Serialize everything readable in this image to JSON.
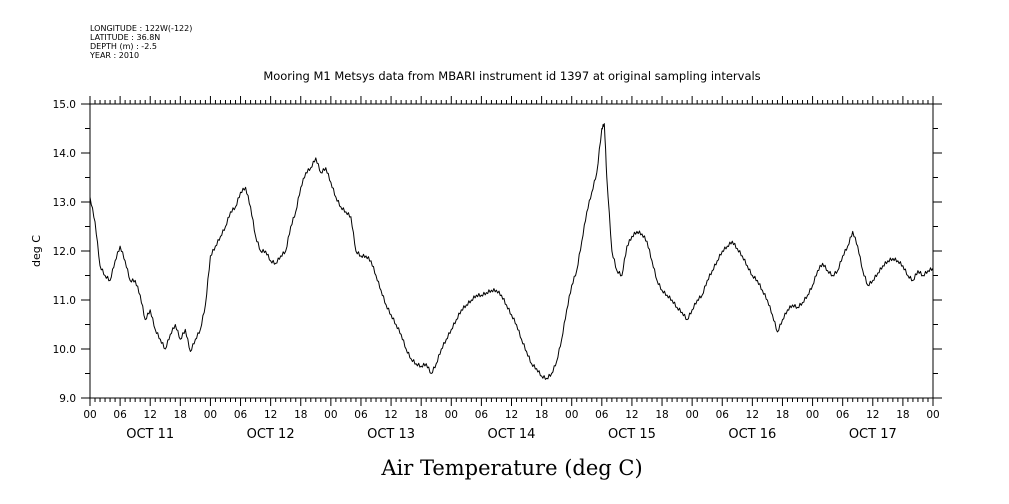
{
  "header": {
    "meta_lines": [
      "LONGITUDE : 122W(-122)",
      "LATITUDE : 36.8N",
      "DEPTH (m) : -2.5",
      "YEAR : 2010"
    ]
  },
  "chart_data": {
    "type": "line",
    "title": "Mooring M1 Metsys data from MBARI instrument id 1397 at original sampling intervals",
    "xlabel": "Air Temperature (deg C)",
    "ylabel": "deg C",
    "ylim": [
      9.0,
      15.0
    ],
    "yticks": [
      "9.0",
      "10.0",
      "11.0",
      "12.0",
      "13.0",
      "14.0",
      "15.0"
    ],
    "x_unit": "hours since 2010-10-11 00:00",
    "xlim": [
      0,
      168
    ],
    "hour_tick_labels": [
      "00",
      "06",
      "12",
      "18",
      "00",
      "06",
      "12",
      "18",
      "00",
      "06",
      "12",
      "18",
      "00",
      "06",
      "12",
      "18",
      "00",
      "06",
      "12",
      "18",
      "00",
      "06",
      "12",
      "18",
      "00",
      "06",
      "12",
      "18",
      "00"
    ],
    "day_labels": [
      "OCT 11",
      "OCT 12",
      "OCT 13",
      "OCT 14",
      "OCT 15",
      "OCT 16",
      "OCT 17"
    ],
    "grid": false,
    "series": [
      {
        "points": [
          [
            0,
            13.1
          ],
          [
            1,
            12.6
          ],
          [
            2,
            11.7
          ],
          [
            3,
            11.5
          ],
          [
            4,
            11.4
          ],
          [
            5,
            11.8
          ],
          [
            6,
            12.1
          ],
          [
            7,
            11.8
          ],
          [
            8,
            11.4
          ],
          [
            9,
            11.4
          ],
          [
            10,
            11.1
          ],
          [
            11,
            10.6
          ],
          [
            12,
            10.8
          ],
          [
            13,
            10.4
          ],
          [
            14,
            10.2
          ],
          [
            15,
            10.0
          ],
          [
            16,
            10.3
          ],
          [
            17,
            10.5
          ],
          [
            18,
            10.2
          ],
          [
            19,
            10.4
          ],
          [
            20,
            9.95
          ],
          [
            21,
            10.2
          ],
          [
            22,
            10.4
          ],
          [
            23,
            10.9
          ],
          [
            24,
            11.9
          ],
          [
            25,
            12.1
          ],
          [
            26,
            12.3
          ],
          [
            27,
            12.5
          ],
          [
            28,
            12.8
          ],
          [
            29,
            12.9
          ],
          [
            30,
            13.2
          ],
          [
            31,
            13.3
          ],
          [
            32,
            12.9
          ],
          [
            33,
            12.3
          ],
          [
            34,
            12.0
          ],
          [
            35,
            12.0
          ],
          [
            36,
            11.8
          ],
          [
            37,
            11.75
          ],
          [
            38,
            11.9
          ],
          [
            39,
            12.0
          ],
          [
            40,
            12.5
          ],
          [
            41,
            12.8
          ],
          [
            42,
            13.3
          ],
          [
            43,
            13.6
          ],
          [
            44,
            13.7
          ],
          [
            45,
            13.9
          ],
          [
            46,
            13.6
          ],
          [
            47,
            13.7
          ],
          [
            48,
            13.4
          ],
          [
            49,
            13.1
          ],
          [
            50,
            12.9
          ],
          [
            51,
            12.8
          ],
          [
            52,
            12.7
          ],
          [
            53,
            12.0
          ],
          [
            54,
            11.9
          ],
          [
            55,
            11.9
          ],
          [
            56,
            11.8
          ],
          [
            57,
            11.5
          ],
          [
            58,
            11.2
          ],
          [
            59,
            10.9
          ],
          [
            60,
            10.7
          ],
          [
            61,
            10.5
          ],
          [
            62,
            10.3
          ],
          [
            63,
            10.0
          ],
          [
            64,
            9.8
          ],
          [
            65,
            9.7
          ],
          [
            66,
            9.65
          ],
          [
            67,
            9.7
          ],
          [
            68,
            9.5
          ],
          [
            69,
            9.7
          ],
          [
            70,
            10.0
          ],
          [
            71,
            10.2
          ],
          [
            72,
            10.4
          ],
          [
            73,
            10.6
          ],
          [
            74,
            10.8
          ],
          [
            75,
            10.9
          ],
          [
            76,
            11.0
          ],
          [
            77,
            11.1
          ],
          [
            78,
            11.1
          ],
          [
            79,
            11.15
          ],
          [
            80,
            11.2
          ],
          [
            81,
            11.2
          ],
          [
            82,
            11.1
          ],
          [
            83,
            10.9
          ],
          [
            84,
            10.7
          ],
          [
            85,
            10.5
          ],
          [
            86,
            10.2
          ],
          [
            87,
            9.95
          ],
          [
            88,
            9.7
          ],
          [
            89,
            9.6
          ],
          [
            90,
            9.45
          ],
          [
            91,
            9.4
          ],
          [
            92,
            9.5
          ],
          [
            93,
            9.75
          ],
          [
            94,
            10.2
          ],
          [
            95,
            10.8
          ],
          [
            96,
            11.3
          ],
          [
            97,
            11.6
          ],
          [
            98,
            12.2
          ],
          [
            99,
            12.8
          ],
          [
            100,
            13.2
          ],
          [
            101,
            13.6
          ],
          [
            102,
            14.5
          ],
          [
            102.5,
            14.6
          ],
          [
            103,
            13.5
          ],
          [
            104,
            12.0
          ],
          [
            105,
            11.6
          ],
          [
            106,
            11.5
          ],
          [
            107,
            12.1
          ],
          [
            108,
            12.3
          ],
          [
            109,
            12.4
          ],
          [
            110,
            12.35
          ],
          [
            111,
            12.2
          ],
          [
            112,
            11.8
          ],
          [
            113,
            11.4
          ],
          [
            114,
            11.2
          ],
          [
            115,
            11.1
          ],
          [
            116,
            11.0
          ],
          [
            117,
            10.85
          ],
          [
            118,
            10.75
          ],
          [
            119,
            10.6
          ],
          [
            120,
            10.8
          ],
          [
            121,
            11.0
          ],
          [
            122,
            11.1
          ],
          [
            123,
            11.4
          ],
          [
            124,
            11.6
          ],
          [
            125,
            11.8
          ],
          [
            126,
            12.0
          ],
          [
            127,
            12.1
          ],
          [
            128,
            12.2
          ],
          [
            129,
            12.05
          ],
          [
            130,
            11.9
          ],
          [
            131,
            11.7
          ],
          [
            132,
            11.5
          ],
          [
            133,
            11.4
          ],
          [
            134,
            11.2
          ],
          [
            135,
            11.0
          ],
          [
            136,
            10.7
          ],
          [
            137,
            10.35
          ],
          [
            138,
            10.6
          ],
          [
            139,
            10.8
          ],
          [
            140,
            10.9
          ],
          [
            141,
            10.85
          ],
          [
            142,
            10.95
          ],
          [
            143,
            11.1
          ],
          [
            144,
            11.3
          ],
          [
            145,
            11.6
          ],
          [
            146,
            11.75
          ],
          [
            147,
            11.6
          ],
          [
            148,
            11.5
          ],
          [
            149,
            11.6
          ],
          [
            150,
            11.9
          ],
          [
            151,
            12.1
          ],
          [
            152,
            12.4
          ],
          [
            153,
            12.1
          ],
          [
            154,
            11.6
          ],
          [
            155,
            11.3
          ],
          [
            156,
            11.4
          ],
          [
            157,
            11.55
          ],
          [
            158,
            11.7
          ],
          [
            159,
            11.8
          ],
          [
            160,
            11.85
          ],
          [
            161,
            11.8
          ],
          [
            162,
            11.7
          ],
          [
            163,
            11.5
          ],
          [
            164,
            11.4
          ],
          [
            165,
            11.6
          ],
          [
            166,
            11.5
          ],
          [
            167,
            11.6
          ],
          [
            168,
            11.65
          ]
        ]
      }
    ]
  }
}
